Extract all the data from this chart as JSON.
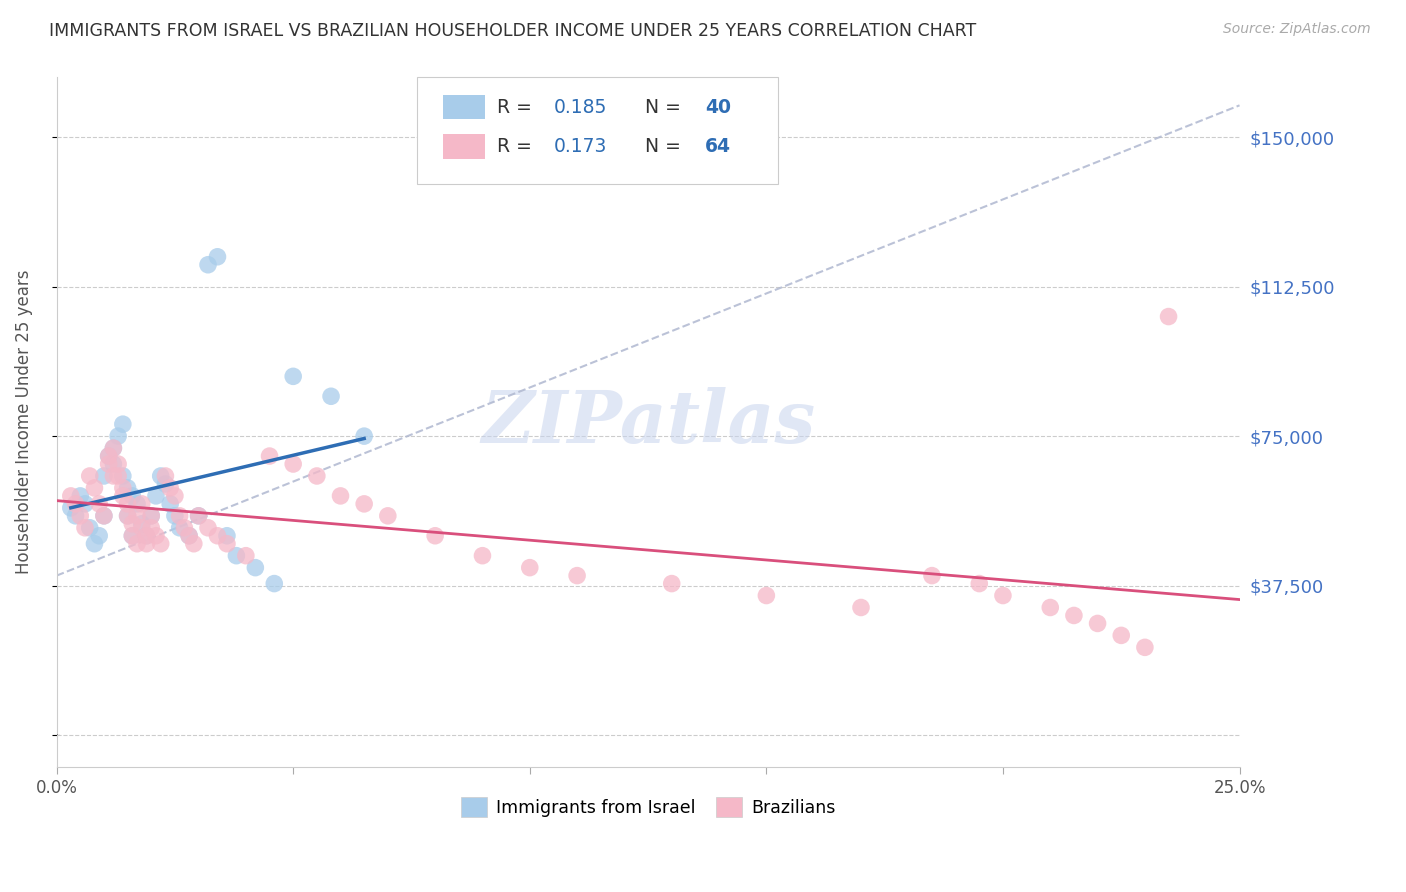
{
  "title": "IMMIGRANTS FROM ISRAEL VS BRAZILIAN HOUSEHOLDER INCOME UNDER 25 YEARS CORRELATION CHART",
  "source": "Source: ZipAtlas.com",
  "ylabel": "Householder Income Under 25 years",
  "xlim": [
    0.0,
    0.25
  ],
  "ylim": [
    -8000,
    165000
  ],
  "yticks": [
    0,
    37500,
    75000,
    112500,
    150000
  ],
  "ytick_labels": [
    "",
    "$37,500",
    "$75,000",
    "$112,500",
    "$150,000"
  ],
  "xticks": [
    0.0,
    0.05,
    0.1,
    0.15,
    0.2,
    0.25
  ],
  "xtick_labels": [
    "0.0%",
    "",
    "",
    "",
    "",
    "25.0%"
  ],
  "legend_label1": "Immigrants from Israel",
  "legend_label2": "Brazilians",
  "blue_color": "#A8CCEA",
  "pink_color": "#F5B8C8",
  "blue_line_color": "#2E6DB4",
  "pink_line_color": "#D94F7C",
  "dashed_line_color": "#B0B8D0",
  "tick_color_right": "#4472C4",
  "watermark": "ZIPatlas",
  "israel_x": [
    0.003,
    0.004,
    0.005,
    0.006,
    0.007,
    0.008,
    0.009,
    0.01,
    0.01,
    0.011,
    0.012,
    0.012,
    0.013,
    0.014,
    0.014,
    0.015,
    0.015,
    0.016,
    0.016,
    0.017,
    0.018,
    0.019,
    0.02,
    0.021,
    0.022,
    0.023,
    0.024,
    0.025,
    0.026,
    0.028,
    0.03,
    0.032,
    0.034,
    0.036,
    0.038,
    0.042,
    0.046,
    0.05,
    0.058,
    0.065
  ],
  "israel_y": [
    57000,
    55000,
    60000,
    58000,
    52000,
    48000,
    50000,
    55000,
    65000,
    70000,
    68000,
    72000,
    75000,
    78000,
    65000,
    62000,
    55000,
    50000,
    60000,
    58000,
    53000,
    50000,
    55000,
    60000,
    65000,
    63000,
    58000,
    55000,
    52000,
    50000,
    55000,
    118000,
    120000,
    50000,
    45000,
    42000,
    38000,
    90000,
    85000,
    75000
  ],
  "brazil_x": [
    0.003,
    0.004,
    0.005,
    0.006,
    0.007,
    0.008,
    0.009,
    0.01,
    0.011,
    0.011,
    0.012,
    0.012,
    0.013,
    0.013,
    0.014,
    0.014,
    0.015,
    0.015,
    0.016,
    0.016,
    0.017,
    0.017,
    0.018,
    0.018,
    0.019,
    0.019,
    0.02,
    0.02,
    0.021,
    0.022,
    0.023,
    0.024,
    0.025,
    0.026,
    0.027,
    0.028,
    0.029,
    0.03,
    0.032,
    0.034,
    0.036,
    0.04,
    0.045,
    0.05,
    0.055,
    0.06,
    0.065,
    0.07,
    0.08,
    0.09,
    0.1,
    0.11,
    0.13,
    0.15,
    0.17,
    0.185,
    0.195,
    0.2,
    0.21,
    0.215,
    0.22,
    0.225,
    0.23,
    0.235
  ],
  "brazil_y": [
    60000,
    58000,
    55000,
    52000,
    65000,
    62000,
    58000,
    55000,
    70000,
    68000,
    65000,
    72000,
    68000,
    65000,
    62000,
    60000,
    58000,
    55000,
    53000,
    50000,
    48000,
    55000,
    52000,
    58000,
    50000,
    48000,
    55000,
    52000,
    50000,
    48000,
    65000,
    62000,
    60000,
    55000,
    52000,
    50000,
    48000,
    55000,
    52000,
    50000,
    48000,
    45000,
    70000,
    68000,
    65000,
    60000,
    58000,
    55000,
    50000,
    45000,
    42000,
    40000,
    38000,
    35000,
    32000,
    40000,
    38000,
    35000,
    32000,
    30000,
    28000,
    25000,
    22000,
    105000
  ]
}
